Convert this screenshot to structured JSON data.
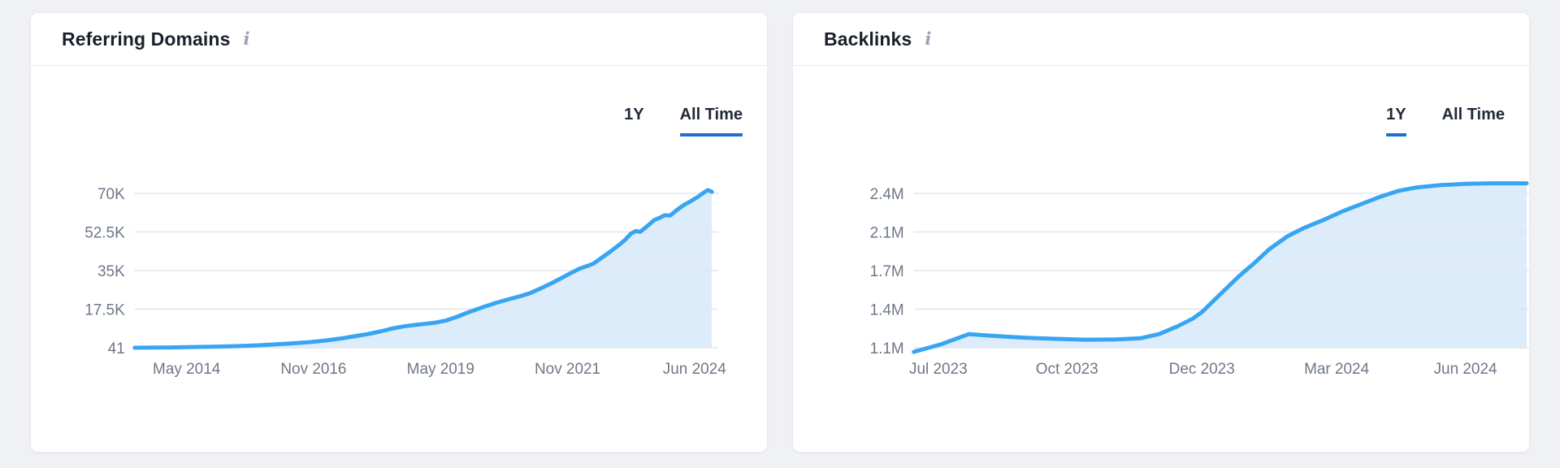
{
  "theme": {
    "page_bg": "#f0f1f5",
    "card_bg": "#ffffff",
    "divider": "#e9ebf1",
    "title_text": "#1a202c",
    "tab_text": "#222a39",
    "tab_underline": "#1e6fd2",
    "info_icon": "#9aa2b1",
    "axis_text": "#6e7789",
    "grid": "#e3e6ed",
    "line_blue": "#38a5f2",
    "fill_blue": "#ddecfa"
  },
  "cards": [
    {
      "title": "Referring Domains",
      "info_icon_glyph": "i",
      "tabs": [
        {
          "label": "1Y",
          "active": false
        },
        {
          "label": "All Time",
          "active": true
        }
      ]
    },
    {
      "title": "Backlinks",
      "info_icon_glyph": "i",
      "tabs": [
        {
          "label": "1Y",
          "active": true
        },
        {
          "label": "All Time",
          "active": false
        }
      ]
    }
  ],
  "chart_data": [
    {
      "type": "area",
      "title": "Referring Domains",
      "selected_range": "All Time",
      "legend_position": "none",
      "grid": true,
      "line_color": "#38a5f2",
      "fill_color": "#ddecfa",
      "ylim": [
        41,
        70000
      ],
      "y_ticks": [
        {
          "label": "41",
          "value": 41
        },
        {
          "label": "17.5K",
          "value": 17500
        },
        {
          "label": "35K",
          "value": 35000
        },
        {
          "label": "52.5K",
          "value": 52500
        },
        {
          "label": "70K",
          "value": 70000
        }
      ],
      "x_ticks": [
        {
          "label": "May 2014",
          "pos": 0.09
        },
        {
          "label": "Nov 2016",
          "pos": 0.31
        },
        {
          "label": "May 2019",
          "pos": 0.53
        },
        {
          "label": "Nov 2021",
          "pos": 0.75
        },
        {
          "label": "Jun 2024",
          "pos": 0.97
        }
      ],
      "points": [
        [
          0,
          41
        ],
        [
          0.03,
          120
        ],
        [
          0.06,
          200
        ],
        [
          0.09,
          300
        ],
        [
          0.12,
          430
        ],
        [
          0.15,
          600
        ],
        [
          0.18,
          800
        ],
        [
          0.21,
          1100
        ],
        [
          0.24,
          1500
        ],
        [
          0.27,
          1950
        ],
        [
          0.3,
          2500
        ],
        [
          0.33,
          3300
        ],
        [
          0.36,
          4300
        ],
        [
          0.385,
          5400
        ],
        [
          0.405,
          6300
        ],
        [
          0.425,
          7400
        ],
        [
          0.445,
          8700
        ],
        [
          0.465,
          9700
        ],
        [
          0.48,
          10200
        ],
        [
          0.5,
          10800
        ],
        [
          0.52,
          11400
        ],
        [
          0.54,
          12400
        ],
        [
          0.56,
          14200
        ],
        [
          0.575,
          15800
        ],
        [
          0.59,
          17200
        ],
        [
          0.605,
          18600
        ],
        [
          0.625,
          20300
        ],
        [
          0.645,
          21800
        ],
        [
          0.665,
          23200
        ],
        [
          0.685,
          24800
        ],
        [
          0.7,
          26500
        ],
        [
          0.72,
          29000
        ],
        [
          0.74,
          31700
        ],
        [
          0.755,
          33800
        ],
        [
          0.77,
          35800
        ],
        [
          0.785,
          37200
        ],
        [
          0.795,
          38200
        ],
        [
          0.81,
          41000
        ],
        [
          0.825,
          43800
        ],
        [
          0.84,
          46800
        ],
        [
          0.85,
          49000
        ],
        [
          0.86,
          51800
        ],
        [
          0.868,
          52900
        ],
        [
          0.876,
          52600
        ],
        [
          0.89,
          55600
        ],
        [
          0.9,
          57900
        ],
        [
          0.91,
          59000
        ],
        [
          0.918,
          60100
        ],
        [
          0.928,
          60000
        ],
        [
          0.94,
          62600
        ],
        [
          0.952,
          64800
        ],
        [
          0.963,
          66400
        ],
        [
          0.975,
          68300
        ],
        [
          0.985,
          70200
        ],
        [
          0.993,
          71500
        ],
        [
          1.0,
          70700
        ]
      ]
    },
    {
      "type": "area",
      "title": "Backlinks",
      "selected_range": "1Y",
      "legend_position": "none",
      "grid": true,
      "line_color": "#38a5f2",
      "fill_color": "#ddecfa",
      "ylim": [
        1100000,
        2400000
      ],
      "y_ticks": [
        {
          "label": "1.1M",
          "value": 1100000
        },
        {
          "label": "1.4M",
          "value": 1425000
        },
        {
          "label": "1.7M",
          "value": 1750000
        },
        {
          "label": "2.1M",
          "value": 2075000
        },
        {
          "label": "2.4M",
          "value": 2400000
        }
      ],
      "x_ticks": [
        {
          "label": "Jul 2023",
          "pos": 0.04
        },
        {
          "label": "Oct 2023",
          "pos": 0.25
        },
        {
          "label": "Dec 2023",
          "pos": 0.47
        },
        {
          "label": "Mar 2024",
          "pos": 0.69
        },
        {
          "label": "Jun 2024",
          "pos": 0.9
        }
      ],
      "points": [
        [
          0,
          1065000
        ],
        [
          0.045,
          1130000
        ],
        [
          0.09,
          1215000
        ],
        [
          0.13,
          1200000
        ],
        [
          0.18,
          1185000
        ],
        [
          0.23,
          1175000
        ],
        [
          0.28,
          1168000
        ],
        [
          0.33,
          1170000
        ],
        [
          0.37,
          1180000
        ],
        [
          0.4,
          1215000
        ],
        [
          0.43,
          1280000
        ],
        [
          0.455,
          1345000
        ],
        [
          0.47,
          1400000
        ],
        [
          0.5,
          1550000
        ],
        [
          0.53,
          1700000
        ],
        [
          0.555,
          1810000
        ],
        [
          0.58,
          1930000
        ],
        [
          0.61,
          2040000
        ],
        [
          0.635,
          2105000
        ],
        [
          0.67,
          2180000
        ],
        [
          0.7,
          2250000
        ],
        [
          0.73,
          2310000
        ],
        [
          0.76,
          2370000
        ],
        [
          0.79,
          2420000
        ],
        [
          0.82,
          2450000
        ],
        [
          0.86,
          2470000
        ],
        [
          0.9,
          2480000
        ],
        [
          0.94,
          2485000
        ],
        [
          1.0,
          2485000
        ]
      ]
    }
  ]
}
